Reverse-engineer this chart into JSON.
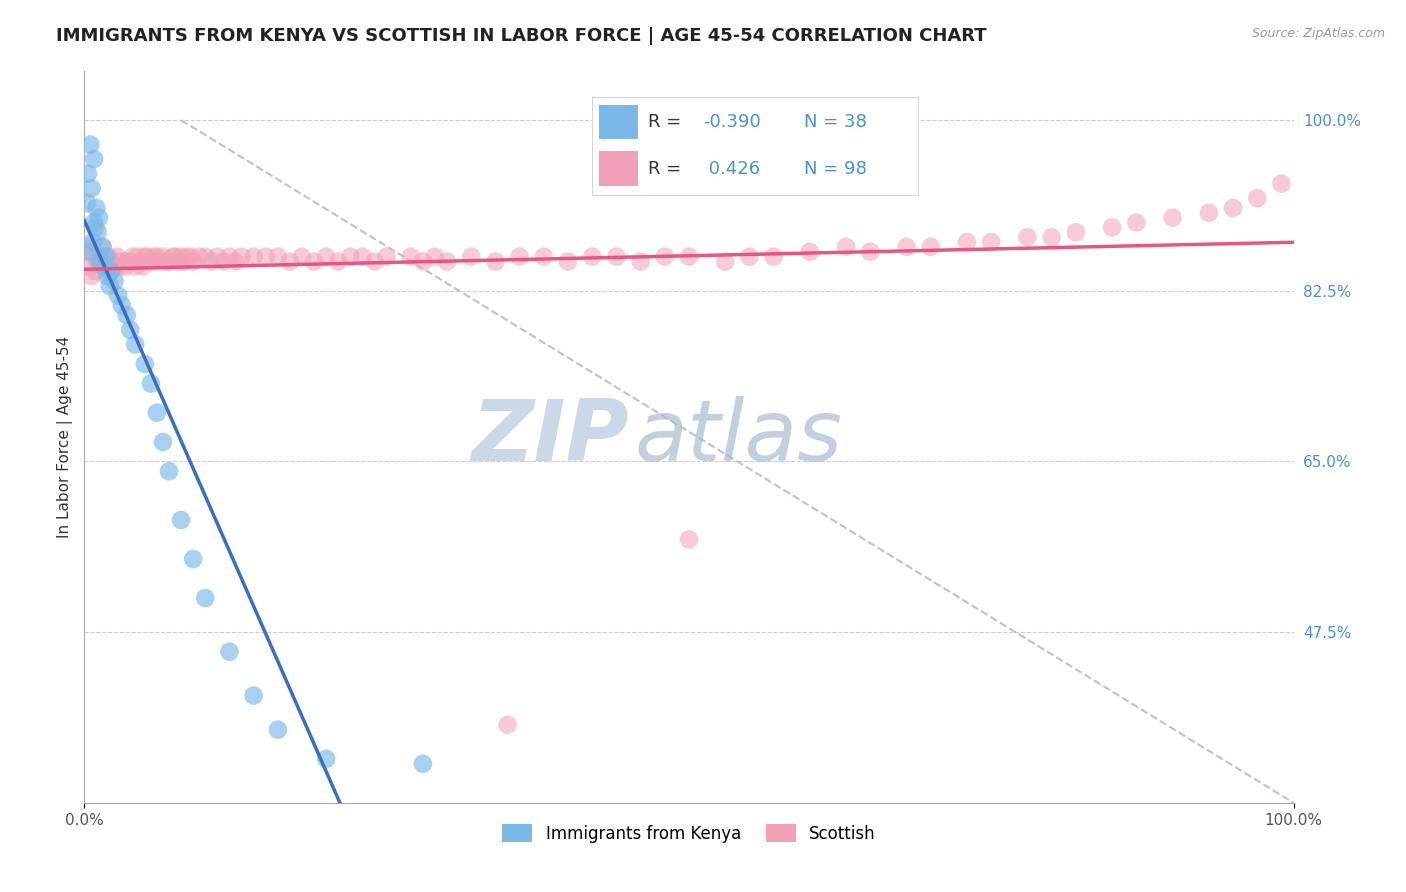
{
  "title": "IMMIGRANTS FROM KENYA VS SCOTTISH IN LABOR FORCE | AGE 45-54 CORRELATION CHART",
  "source_text": "Source: ZipAtlas.com",
  "ylabel": "In Labor Force | Age 45-54",
  "xlim": [
    0.0,
    1.0
  ],
  "ylim": [
    0.3,
    1.05
  ],
  "yticks": [
    0.475,
    0.65,
    0.825,
    1.0
  ],
  "ytick_labels": [
    "47.5%",
    "65.0%",
    "82.5%",
    "100.0%"
  ],
  "xticks": [
    0.0,
    1.0
  ],
  "xtick_labels": [
    "0.0%",
    "100.0%"
  ],
  "kenya_color": "#7ab8e8",
  "scottish_color": "#f2a0b8",
  "kenya_line_color": "#3a6fc0",
  "scottish_line_color": "#e85580",
  "kenya_x": [
    0.005,
    0.008,
    0.003,
    0.006,
    0.002,
    0.01,
    0.012,
    0.008,
    0.009,
    0.011,
    0.007,
    0.005,
    0.015,
    0.018,
    0.013,
    0.016,
    0.022,
    0.019,
    0.025,
    0.021,
    0.028,
    0.031,
    0.035,
    0.038,
    0.042,
    0.05,
    0.055,
    0.06,
    0.065,
    0.07,
    0.08,
    0.09,
    0.1,
    0.12,
    0.14,
    0.16,
    0.2,
    0.28
  ],
  "kenya_y": [
    0.975,
    0.96,
    0.945,
    0.93,
    0.915,
    0.91,
    0.9,
    0.895,
    0.89,
    0.885,
    0.875,
    0.865,
    0.87,
    0.86,
    0.855,
    0.85,
    0.845,
    0.84,
    0.835,
    0.83,
    0.82,
    0.81,
    0.8,
    0.785,
    0.77,
    0.75,
    0.73,
    0.7,
    0.67,
    0.64,
    0.59,
    0.55,
    0.51,
    0.455,
    0.41,
    0.375,
    0.345,
    0.34
  ],
  "scottish_x": [
    0.002,
    0.004,
    0.006,
    0.008,
    0.009,
    0.011,
    0.013,
    0.015,
    0.016,
    0.018,
    0.02,
    0.022,
    0.025,
    0.027,
    0.028,
    0.03,
    0.032,
    0.034,
    0.036,
    0.038,
    0.04,
    0.042,
    0.044,
    0.046,
    0.048,
    0.05,
    0.052,
    0.055,
    0.058,
    0.06,
    0.062,
    0.065,
    0.068,
    0.07,
    0.073,
    0.075,
    0.078,
    0.08,
    0.082,
    0.085,
    0.088,
    0.09,
    0.095,
    0.1,
    0.105,
    0.11,
    0.115,
    0.12,
    0.125,
    0.13,
    0.14,
    0.15,
    0.16,
    0.17,
    0.18,
    0.19,
    0.2,
    0.21,
    0.22,
    0.23,
    0.24,
    0.25,
    0.27,
    0.28,
    0.29,
    0.3,
    0.32,
    0.34,
    0.36,
    0.38,
    0.4,
    0.42,
    0.44,
    0.46,
    0.48,
    0.5,
    0.53,
    0.55,
    0.57,
    0.6,
    0.63,
    0.65,
    0.68,
    0.7,
    0.73,
    0.75,
    0.78,
    0.8,
    0.82,
    0.85,
    0.87,
    0.9,
    0.93,
    0.95,
    0.97,
    0.99,
    0.35,
    0.5
  ],
  "scottish_y": [
    0.87,
    0.85,
    0.84,
    0.86,
    0.845,
    0.855,
    0.86,
    0.87,
    0.85,
    0.845,
    0.86,
    0.855,
    0.85,
    0.86,
    0.855,
    0.85,
    0.855,
    0.85,
    0.855,
    0.855,
    0.86,
    0.85,
    0.86,
    0.855,
    0.85,
    0.86,
    0.86,
    0.855,
    0.86,
    0.86,
    0.855,
    0.86,
    0.855,
    0.855,
    0.86,
    0.86,
    0.855,
    0.86,
    0.855,
    0.86,
    0.86,
    0.855,
    0.86,
    0.86,
    0.855,
    0.86,
    0.855,
    0.86,
    0.855,
    0.86,
    0.86,
    0.86,
    0.86,
    0.855,
    0.86,
    0.855,
    0.86,
    0.855,
    0.86,
    0.86,
    0.855,
    0.86,
    0.86,
    0.855,
    0.86,
    0.855,
    0.86,
    0.855,
    0.86,
    0.86,
    0.855,
    0.86,
    0.86,
    0.855,
    0.86,
    0.86,
    0.855,
    0.86,
    0.86,
    0.865,
    0.87,
    0.865,
    0.87,
    0.87,
    0.875,
    0.875,
    0.88,
    0.88,
    0.885,
    0.89,
    0.895,
    0.9,
    0.905,
    0.91,
    0.92,
    0.935,
    0.38,
    0.57
  ],
  "background_color": "#ffffff",
  "grid_color": "#cccccc",
  "watermark_zip": "ZIP",
  "watermark_atlas": "atlas",
  "watermark_color": "#ccd8e8",
  "title_fontsize": 13,
  "axis_label_fontsize": 11,
  "tick_fontsize": 11,
  "legend_fontsize": 13
}
